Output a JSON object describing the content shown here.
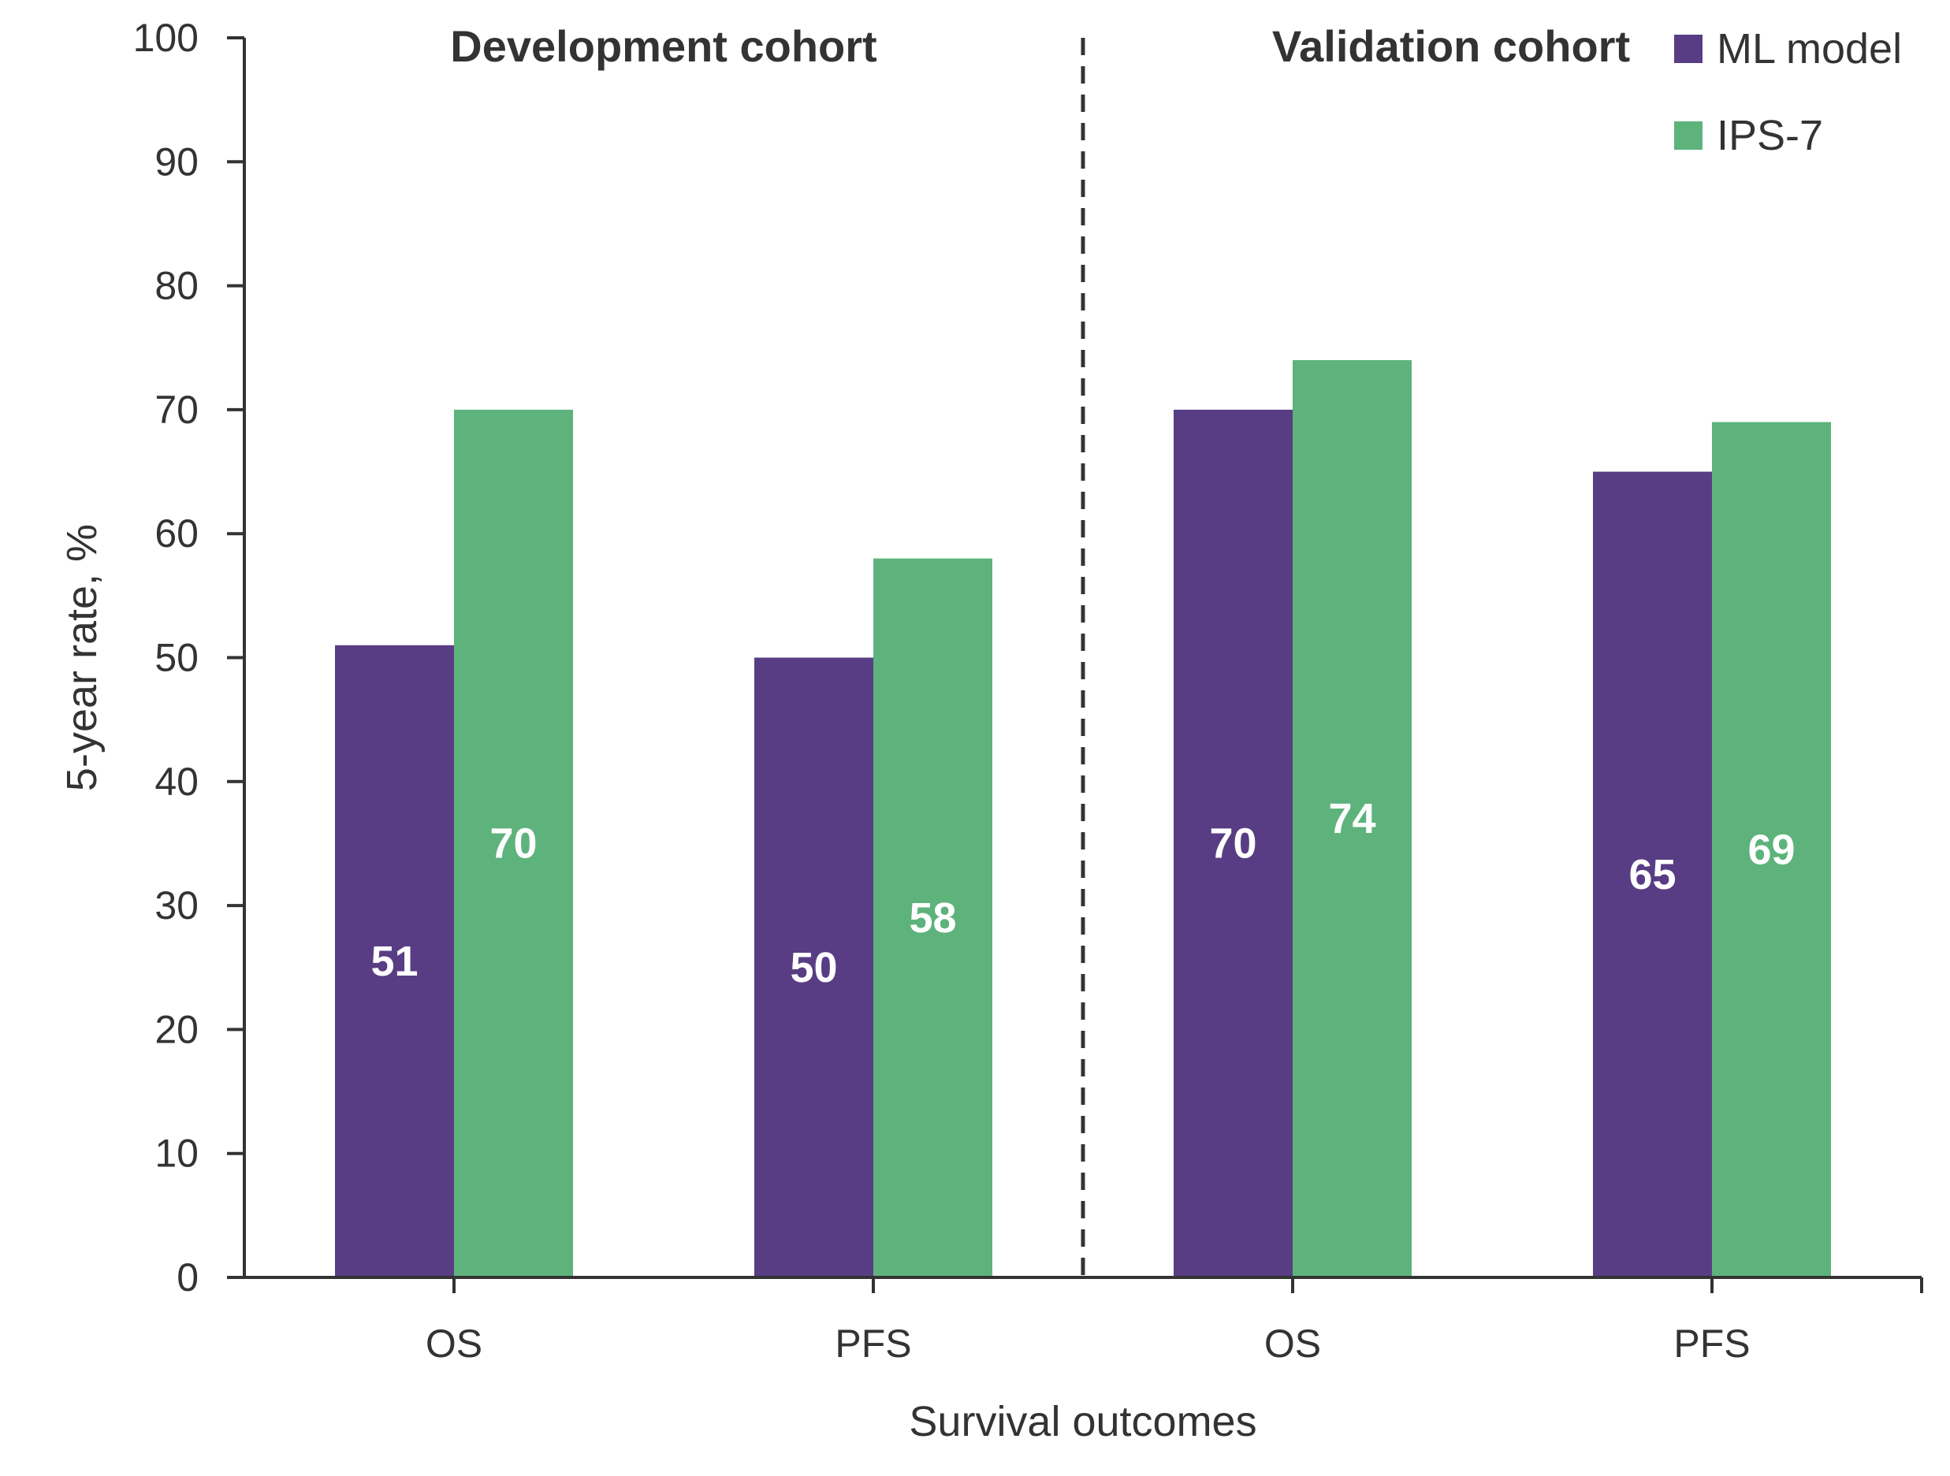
{
  "chart_data": {
    "type": "bar",
    "xlabel": "Survival outcomes",
    "ylabel": "5-year rate, %",
    "ylim": [
      0,
      100
    ],
    "yticks": [
      0,
      10,
      20,
      30,
      40,
      50,
      60,
      70,
      80,
      90,
      100
    ],
    "grid": false,
    "legend_position": "top-right",
    "groups": [
      {
        "title": "Development cohort",
        "categories": [
          "OS",
          "PFS"
        ]
      },
      {
        "title": "Validation cohort",
        "categories": [
          "OS",
          "PFS"
        ]
      }
    ],
    "categories": [
      "OS",
      "PFS",
      "OS",
      "PFS"
    ],
    "series": [
      {
        "name": "ML model",
        "color": "#583D84",
        "values": [
          51,
          50,
          70,
          65
        ]
      },
      {
        "name": "IPS-7",
        "color": "#5DB37B",
        "values": [
          70,
          58,
          74,
          69
        ]
      }
    ]
  },
  "colors": {
    "axis": "#333333",
    "data_label": "#ffffff"
  }
}
